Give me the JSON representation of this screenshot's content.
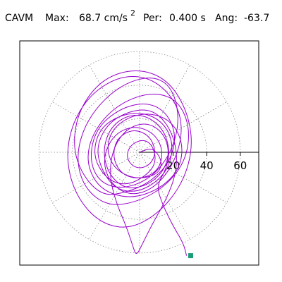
{
  "header": {
    "station": "CAVM",
    "max_label": "Max:",
    "max_value": "68.7 cm/s",
    "max_exp": "2",
    "period_label": "Per:",
    "period_value": "0.400 s",
    "angle_label": "Ang:",
    "angle_value": "-63.7"
  },
  "chart_data": {
    "type": "polar-orbit",
    "title": "",
    "units": "cm/s2",
    "peak_value": 68.7,
    "peak_angle_deg": -63.7,
    "period_s": 0.4,
    "radial_ticks": [
      20,
      40,
      60
    ],
    "radial_tick_labels": [
      "20",
      "40",
      "60"
    ],
    "angular_spokes_deg": [
      0,
      30,
      60,
      90,
      120,
      150,
      180,
      210,
      240,
      270,
      300,
      330
    ],
    "rlim": [
      0,
      70
    ],
    "grid": true,
    "colors": {
      "trace": "#9900cc",
      "peak_marker": "#1a9e77",
      "grid": "#888888",
      "axis": "#000000"
    },
    "trace_points": [
      [
        0,
        0
      ],
      [
        8,
        3
      ],
      [
        14,
        -6
      ],
      [
        10,
        -14
      ],
      [
        -4,
        -16
      ],
      [
        -16,
        -9
      ],
      [
        -20,
        4
      ],
      [
        -14,
        17
      ],
      [
        2,
        24
      ],
      [
        18,
        20
      ],
      [
        26,
        6
      ],
      [
        24,
        -10
      ],
      [
        12,
        -22
      ],
      [
        -6,
        -28
      ],
      [
        -24,
        -22
      ],
      [
        -32,
        -6
      ],
      [
        -28,
        12
      ],
      [
        -14,
        28
      ],
      [
        6,
        36
      ],
      [
        22,
        32
      ],
      [
        30,
        16
      ],
      [
        28,
        -4
      ],
      [
        16,
        -20
      ],
      [
        -2,
        -30
      ],
      [
        -20,
        -32
      ],
      [
        -34,
        -20
      ],
      [
        -38,
        0
      ],
      [
        -30,
        22
      ],
      [
        -12,
        40
      ],
      [
        8,
        46
      ],
      [
        20,
        38
      ],
      [
        24,
        18
      ],
      [
        18,
        -2
      ],
      [
        6,
        -16
      ],
      [
        -10,
        -22
      ],
      [
        -24,
        -18
      ],
      [
        -30,
        -4
      ],
      [
        -26,
        14
      ],
      [
        -12,
        26
      ],
      [
        4,
        30
      ],
      [
        16,
        24
      ],
      [
        22,
        10
      ],
      [
        18,
        -6
      ],
      [
        6,
        -18
      ],
      [
        -8,
        -24
      ],
      [
        -22,
        -26
      ],
      [
        -34,
        -14
      ],
      [
        -40,
        4
      ],
      [
        -36,
        26
      ],
      [
        -22,
        44
      ],
      [
        -2,
        50
      ],
      [
        16,
        44
      ],
      [
        28,
        26
      ],
      [
        32,
        4
      ],
      [
        26,
        -18
      ],
      [
        12,
        -36
      ],
      [
        -6,
        -46
      ],
      [
        -24,
        -42
      ],
      [
        -38,
        -26
      ],
      [
        -44,
        -4
      ],
      [
        -40,
        18
      ],
      [
        -28,
        36
      ],
      [
        -10,
        46
      ],
      [
        8,
        44
      ],
      [
        22,
        30
      ],
      [
        26,
        12
      ],
      [
        20,
        -8
      ],
      [
        8,
        -22
      ],
      [
        -6,
        -26
      ],
      [
        -18,
        -18
      ],
      [
        -22,
        -4
      ],
      [
        -16,
        10
      ],
      [
        -4,
        16
      ],
      [
        8,
        12
      ],
      [
        14,
        2
      ],
      [
        12,
        -10
      ],
      [
        2,
        -16
      ],
      [
        -10,
        -14
      ],
      [
        -16,
        -4
      ],
      [
        -14,
        8
      ],
      [
        -4,
        14
      ],
      [
        6,
        10
      ],
      [
        10,
        0
      ],
      [
        6,
        -8
      ],
      [
        -2,
        -10
      ],
      [
        -8,
        -4
      ],
      [
        -6,
        4
      ],
      [
        2,
        8
      ],
      [
        8,
        4
      ],
      [
        10,
        -6
      ],
      [
        4,
        -14
      ],
      [
        -8,
        -20
      ],
      [
        -20,
        -16
      ],
      [
        -28,
        -2
      ],
      [
        -24,
        14
      ],
      [
        -12,
        22
      ],
      [
        2,
        24
      ],
      [
        14,
        18
      ],
      [
        20,
        6
      ],
      [
        18,
        -8
      ],
      [
        10,
        -18
      ],
      [
        -2,
        -24
      ],
      [
        -14,
        -22
      ],
      [
        -22,
        -12
      ],
      [
        -26,
        2
      ],
      [
        -20,
        16
      ],
      [
        -8,
        24
      ],
      [
        6,
        26
      ],
      [
        16,
        18
      ],
      [
        22,
        4
      ],
      [
        22,
        -12
      ],
      [
        16,
        -28
      ],
      [
        8,
        -42
      ],
      [
        2,
        -54
      ],
      [
        -2,
        -62
      ],
      [
        -4,
        -56
      ],
      [
        -8,
        -44
      ],
      [
        -14,
        -30
      ],
      [
        -18,
        -14
      ],
      [
        -16,
        2
      ],
      [
        -8,
        14
      ],
      [
        4,
        18
      ],
      [
        14,
        12
      ],
      [
        18,
        0
      ],
      [
        14,
        -12
      ],
      [
        4,
        -20
      ],
      [
        -8,
        -22
      ],
      [
        -18,
        -14
      ],
      [
        -22,
        0
      ],
      [
        -18,
        14
      ],
      [
        -8,
        22
      ],
      [
        4,
        22
      ],
      [
        14,
        14
      ],
      [
        18,
        2
      ],
      [
        16,
        -10
      ],
      [
        10,
        -20
      ],
      [
        14,
        -32
      ],
      [
        20,
        -44
      ],
      [
        26,
        -54
      ],
      [
        28,
        -61.6
      ]
    ]
  }
}
